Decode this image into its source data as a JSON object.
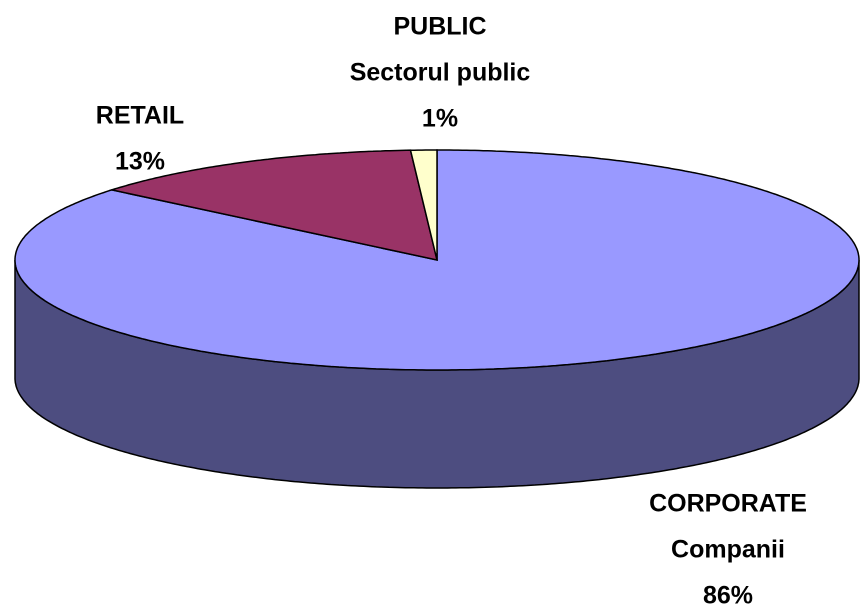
{
  "chart_data": {
    "type": "pie3d",
    "categories": [
      [
        "CORPORATE",
        "Companii"
      ],
      [
        "RETAIL"
      ],
      [
        "PUBLIC",
        "Sectorul public"
      ]
    ],
    "values": [
      86,
      13,
      1
    ],
    "value_labels": [
      "86%",
      "13%",
      "1%"
    ],
    "colors": [
      "#9999ff",
      "#993366",
      "#ffffcc"
    ]
  }
}
